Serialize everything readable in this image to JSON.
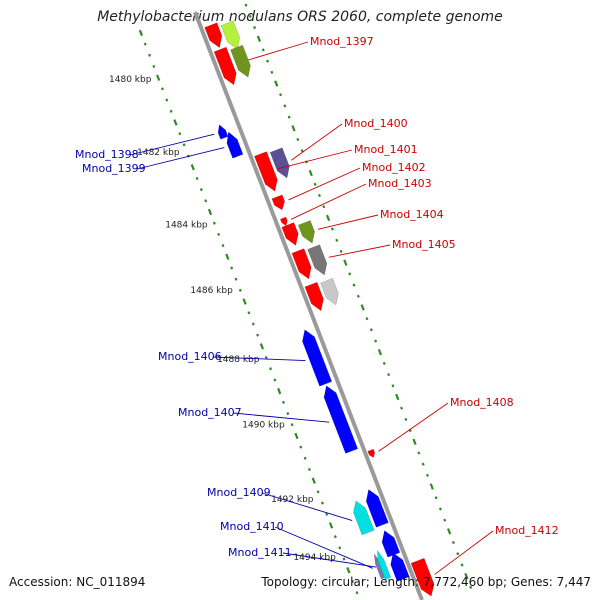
{
  "title": "Methylobacterium nodulans ORS 2060, complete genome",
  "accession": "Accession: NC_011894",
  "topology": "Topology: circular; Length: 7,772,460 bp; Genes: 7,447",
  "colors": {
    "backbone": "#9a9a9a",
    "tick": "#2e8b22",
    "forward_label": "#cc0000",
    "reverse_label": "#0000aa"
  },
  "scale_labels": [
    "1480 kbp",
    "1482 kbp",
    "1484 kbp",
    "1486 kbp",
    "1488 kbp",
    "1490 kbp",
    "1492 kbp",
    "1494 kbp"
  ],
  "genes": [
    {
      "label": "",
      "strand": "forward",
      "color": "#ff0000"
    },
    {
      "label": "",
      "strand": "forward",
      "color": "#b4f03c"
    },
    {
      "label": "Mnod_1397",
      "strand": "forward",
      "color": "#ff0000"
    },
    {
      "label": "",
      "strand": "forward",
      "color": "#6e961e"
    },
    {
      "label": "Mnod_1398",
      "strand": "reverse",
      "color": "#0000ff"
    },
    {
      "label": "Mnod_1399",
      "strand": "reverse",
      "color": "#0000ff"
    },
    {
      "label": "Mnod_1400",
      "strand": "forward",
      "color": "#5a5096"
    },
    {
      "label": "Mnod_1401",
      "strand": "forward",
      "color": "#ff0000"
    },
    {
      "label": "Mnod_1402",
      "strand": "forward",
      "color": "#ff0000"
    },
    {
      "label": "Mnod_1403",
      "strand": "forward",
      "color": "#ff0000"
    },
    {
      "label": "Mnod_1404",
      "strand": "forward",
      "color": "#6e961e"
    },
    {
      "label": "",
      "strand": "forward",
      "color": "#ff0000"
    },
    {
      "label": "Mnod_1405",
      "strand": "forward",
      "color": "#777777"
    },
    {
      "label": "",
      "strand": "forward",
      "color": "#ff0000"
    },
    {
      "label": "",
      "strand": "forward",
      "color": "#c8c8c8"
    },
    {
      "label": "",
      "strand": "forward",
      "color": "#ff0000"
    },
    {
      "label": "Mnod_1406",
      "strand": "reverse",
      "color": "#0000ff"
    },
    {
      "label": "Mnod_1407",
      "strand": "reverse",
      "color": "#0000ff"
    },
    {
      "label": "Mnod_1408",
      "strand": "forward",
      "color": "#ff0000"
    },
    {
      "label": "Mnod_1409",
      "strand": "reverse",
      "color": "#00e0e0"
    },
    {
      "label": "",
      "strand": "reverse",
      "color": "#0000ff"
    },
    {
      "label": "",
      "strand": "reverse",
      "color": "#0000ff"
    },
    {
      "label": "Mnod_1410",
      "strand": "reverse",
      "color": "#7a7aaa"
    },
    {
      "label": "Mnod_1411",
      "strand": "reverse",
      "color": "#00e0e0"
    },
    {
      "label": "",
      "strand": "reverse",
      "color": "#0000ff"
    },
    {
      "label": "Mnod_1412",
      "strand": "forward",
      "color": "#ff0000"
    }
  ]
}
